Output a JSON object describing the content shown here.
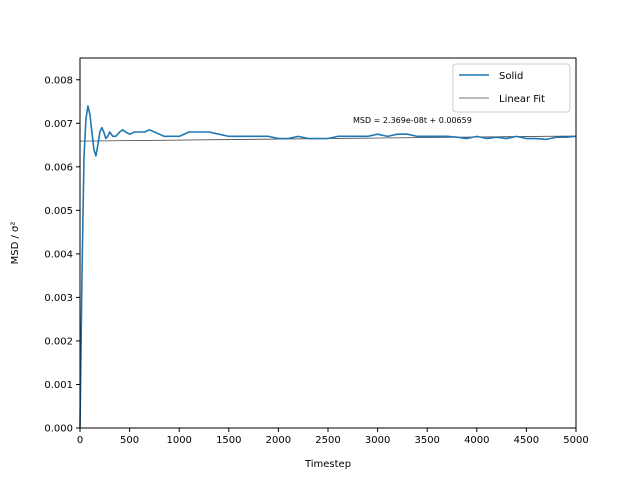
{
  "chart_data": {
    "type": "line",
    "title": "",
    "xlabel": "Timestep",
    "ylabel": "MSD / σ²",
    "xlim": [
      0,
      5000
    ],
    "ylim": [
      0,
      0.0085
    ],
    "xticks": [
      0,
      500,
      1000,
      1500,
      2000,
      2500,
      3000,
      3500,
      4000,
      4500,
      5000
    ],
    "yticks": [
      0.0,
      0.001,
      0.002,
      0.003,
      0.004,
      0.005,
      0.006,
      0.007,
      0.008
    ],
    "ytick_labels": [
      "0.000",
      "0.001",
      "0.002",
      "0.003",
      "0.004",
      "0.005",
      "0.006",
      "0.007",
      "0.008"
    ],
    "grid": false,
    "legend_position": "top-right",
    "annotation": "MSD = 2.369e-08t + 0.00659",
    "series": [
      {
        "name": "Solid",
        "color": "#1f77b4",
        "x": [
          0,
          20,
          40,
          60,
          80,
          100,
          120,
          140,
          160,
          180,
          200,
          220,
          240,
          260,
          280,
          300,
          330,
          360,
          400,
          430,
          460,
          500,
          550,
          600,
          650,
          700,
          750,
          800,
          850,
          900,
          1000,
          1100,
          1200,
          1300,
          1400,
          1500,
          1600,
          1700,
          1800,
          1900,
          2000,
          2100,
          2200,
          2300,
          2400,
          2500,
          2600,
          2700,
          2800,
          2900,
          3000,
          3100,
          3200,
          3300,
          3400,
          3500,
          3600,
          3700,
          3800,
          3900,
          4000,
          4100,
          4200,
          4300,
          4400,
          4500,
          4600,
          4700,
          4800,
          4900,
          5000
        ],
        "y": [
          0.0,
          0.0035,
          0.0062,
          0.0071,
          0.0074,
          0.0072,
          0.0068,
          0.0064,
          0.00625,
          0.0065,
          0.0068,
          0.0069,
          0.0068,
          0.00665,
          0.0067,
          0.0068,
          0.0067,
          0.0067,
          0.0068,
          0.00685,
          0.0068,
          0.00675,
          0.0068,
          0.0068,
          0.0068,
          0.00685,
          0.0068,
          0.00675,
          0.0067,
          0.0067,
          0.0067,
          0.0068,
          0.0068,
          0.0068,
          0.00675,
          0.0067,
          0.0067,
          0.0067,
          0.0067,
          0.0067,
          0.00665,
          0.00665,
          0.0067,
          0.00665,
          0.00665,
          0.00665,
          0.0067,
          0.0067,
          0.0067,
          0.0067,
          0.00675,
          0.0067,
          0.00675,
          0.00675,
          0.0067,
          0.0067,
          0.0067,
          0.0067,
          0.00668,
          0.00665,
          0.0067,
          0.00665,
          0.00668,
          0.00665,
          0.0067,
          0.00665,
          0.00665,
          0.00663,
          0.00668,
          0.00668,
          0.0067
        ]
      },
      {
        "name": "Linear Fit",
        "color": "#444444",
        "x": [
          0,
          5000
        ],
        "y": [
          0.00659,
          0.006708
        ]
      }
    ]
  }
}
